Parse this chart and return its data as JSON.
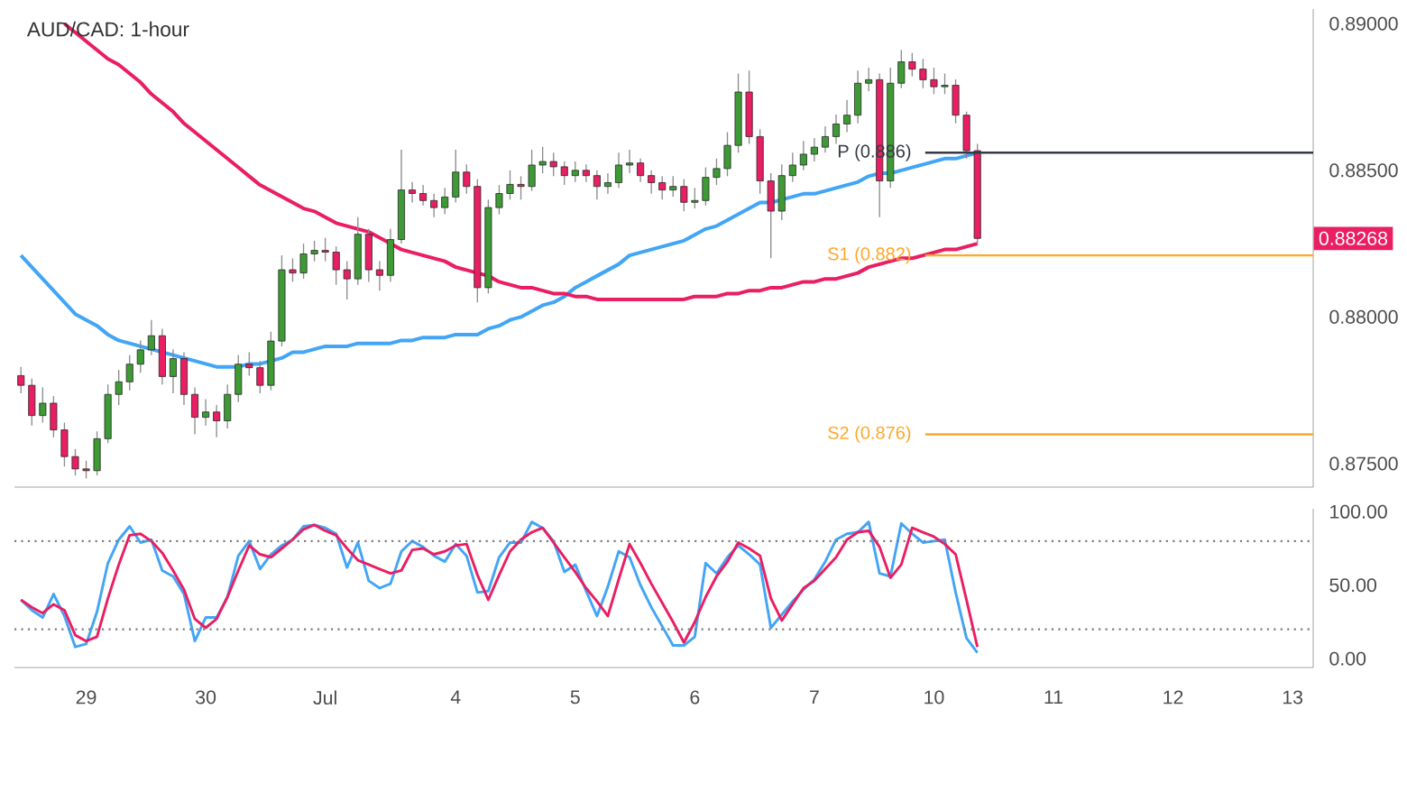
{
  "chart_data": [
    {
      "type": "candlestick",
      "title": "AUD/CAD: 1-hour",
      "ohlc": [
        [
          0.878,
          0.8783,
          0.8774,
          0.87767
        ],
        [
          0.87767,
          0.8779,
          0.8763,
          0.87664
        ],
        [
          0.87664,
          0.8776,
          0.8764,
          0.87706
        ],
        [
          0.87706,
          0.8773,
          0.8759,
          0.87615
        ],
        [
          0.87615,
          0.8764,
          0.8749,
          0.87524
        ],
        [
          0.87524,
          0.8755,
          0.8746,
          0.87482
        ],
        [
          0.87482,
          0.8751,
          0.8745,
          0.87476
        ],
        [
          0.87476,
          0.8761,
          0.8746,
          0.87585
        ],
        [
          0.87585,
          0.8777,
          0.8757,
          0.87736
        ],
        [
          0.87736,
          0.8782,
          0.877,
          0.87779
        ],
        [
          0.87779,
          0.8787,
          0.8775,
          0.87839
        ],
        [
          0.87839,
          0.8792,
          0.8781,
          0.87888
        ],
        [
          0.87888,
          0.8799,
          0.8787,
          0.87936
        ],
        [
          0.87936,
          0.8796,
          0.8777,
          0.87797
        ],
        [
          0.87797,
          0.8789,
          0.8774,
          0.87858
        ],
        [
          0.87858,
          0.8788,
          0.877,
          0.87736
        ],
        [
          0.87736,
          0.8776,
          0.876,
          0.87658
        ],
        [
          0.87658,
          0.8772,
          0.8763,
          0.87676
        ],
        [
          0.87676,
          0.877,
          0.8759,
          0.87646
        ],
        [
          0.87646,
          0.8777,
          0.8762,
          0.87736
        ],
        [
          0.87736,
          0.8787,
          0.8771,
          0.87839
        ],
        [
          0.87839,
          0.8788,
          0.878,
          0.87827
        ],
        [
          0.87827,
          0.8785,
          0.8774,
          0.87767
        ],
        [
          0.87767,
          0.8795,
          0.8775,
          0.87918
        ],
        [
          0.87918,
          0.8821,
          0.879,
          0.88161
        ],
        [
          0.88161,
          0.882,
          0.8812,
          0.8815
        ],
        [
          0.8815,
          0.8825,
          0.8813,
          0.88215
        ],
        [
          0.88215,
          0.8826,
          0.8819,
          0.88227
        ],
        [
          0.88227,
          0.8827,
          0.8819,
          0.88221
        ],
        [
          0.88221,
          0.8824,
          0.8811,
          0.88161
        ],
        [
          0.88161,
          0.8819,
          0.8806,
          0.8813
        ],
        [
          0.8813,
          0.8834,
          0.8811,
          0.88282
        ],
        [
          0.88282,
          0.883,
          0.8812,
          0.88161
        ],
        [
          0.88161,
          0.8819,
          0.8809,
          0.88142
        ],
        [
          0.88142,
          0.883,
          0.8812,
          0.88264
        ],
        [
          0.88264,
          0.8857,
          0.8825,
          0.88433
        ],
        [
          0.88433,
          0.8846,
          0.8839,
          0.88421
        ],
        [
          0.88421,
          0.8845,
          0.8838,
          0.88397
        ],
        [
          0.88397,
          0.8842,
          0.8834,
          0.88373
        ],
        [
          0.88373,
          0.8844,
          0.8835,
          0.88409
        ],
        [
          0.88409,
          0.8857,
          0.8839,
          0.88494
        ],
        [
          0.88494,
          0.8852,
          0.8842,
          0.88445
        ],
        [
          0.88445,
          0.8847,
          0.8805,
          0.881
        ],
        [
          0.881,
          0.884,
          0.8808,
          0.88373
        ],
        [
          0.88373,
          0.8845,
          0.8835,
          0.88421
        ],
        [
          0.88421,
          0.885,
          0.884,
          0.88452
        ],
        [
          0.88452,
          0.8848,
          0.884,
          0.88445
        ],
        [
          0.88445,
          0.8857,
          0.8843,
          0.88518
        ],
        [
          0.88518,
          0.8858,
          0.8849,
          0.8853
        ],
        [
          0.8853,
          0.8856,
          0.8848,
          0.88512
        ],
        [
          0.88512,
          0.8853,
          0.8845,
          0.88482
        ],
        [
          0.88482,
          0.8853,
          0.8846,
          0.885
        ],
        [
          0.885,
          0.8852,
          0.8846,
          0.88482
        ],
        [
          0.88482,
          0.885,
          0.884,
          0.88445
        ],
        [
          0.88445,
          0.8849,
          0.8842,
          0.88458
        ],
        [
          0.88458,
          0.8856,
          0.8844,
          0.88518
        ],
        [
          0.88518,
          0.8857,
          0.8849,
          0.88525
        ],
        [
          0.88525,
          0.8854,
          0.8846,
          0.88482
        ],
        [
          0.88482,
          0.885,
          0.8842,
          0.88458
        ],
        [
          0.88458,
          0.8848,
          0.884,
          0.88433
        ],
        [
          0.88433,
          0.8848,
          0.8841,
          0.88445
        ],
        [
          0.88445,
          0.8847,
          0.8836,
          0.88391
        ],
        [
          0.88391,
          0.8844,
          0.8837,
          0.88397
        ],
        [
          0.88397,
          0.8851,
          0.8838,
          0.88476
        ],
        [
          0.88476,
          0.8854,
          0.8845,
          0.88506
        ],
        [
          0.88506,
          0.8863,
          0.8848,
          0.88585
        ],
        [
          0.88585,
          0.8883,
          0.8856,
          0.88767
        ],
        [
          0.88767,
          0.8884,
          0.8859,
          0.88615
        ],
        [
          0.88615,
          0.8864,
          0.8842,
          0.88464
        ],
        [
          0.88464,
          0.8849,
          0.882,
          0.88361
        ],
        [
          0.88361,
          0.8852,
          0.8833,
          0.88482
        ],
        [
          0.88482,
          0.8856,
          0.8846,
          0.88518
        ],
        [
          0.88518,
          0.886,
          0.885,
          0.88555
        ],
        [
          0.88555,
          0.8861,
          0.8853,
          0.88579
        ],
        [
          0.88579,
          0.8865,
          0.8856,
          0.88615
        ],
        [
          0.88615,
          0.8869,
          0.8859,
          0.88658
        ],
        [
          0.88658,
          0.8874,
          0.8863,
          0.88688
        ],
        [
          0.88688,
          0.8884,
          0.8866,
          0.88797
        ],
        [
          0.88797,
          0.8885,
          0.8877,
          0.88809
        ],
        [
          0.88809,
          0.8883,
          0.8834,
          0.88464
        ],
        [
          0.88464,
          0.8885,
          0.8844,
          0.88797
        ],
        [
          0.88797,
          0.8891,
          0.8878,
          0.8887
        ],
        [
          0.8887,
          0.889,
          0.8882,
          0.88845
        ],
        [
          0.88845,
          0.8888,
          0.8878,
          0.88809
        ],
        [
          0.88809,
          0.8885,
          0.8876,
          0.88785
        ],
        [
          0.88785,
          0.8883,
          0.8876,
          0.8879
        ],
        [
          0.8879,
          0.8881,
          0.8866,
          0.88688
        ],
        [
          0.88688,
          0.887,
          0.8854,
          0.88567
        ],
        [
          0.88567,
          0.8859,
          0.8825,
          0.88268
        ],
        null,
        null,
        null,
        null,
        null,
        null,
        null,
        null,
        null,
        null,
        null,
        null,
        null,
        null,
        null,
        null,
        null,
        null,
        null,
        null,
        null,
        null,
        null,
        null,
        null,
        null,
        null,
        null,
        null,
        null
      ],
      "colors": [
        "#e91e63",
        "#e91e63",
        "#3d9a35",
        "#e91e63",
        "#e91e63",
        "#e91e63",
        "#e91e63",
        "#3d9a35",
        "#3d9a35",
        "#3d9a35",
        "#3d9a35",
        "#3d9a35",
        "#3d9a35",
        "#e91e63",
        "#3d9a35",
        "#e91e63",
        "#e91e63",
        "#3d9a35",
        "#e91e63",
        "#3d9a35",
        "#3d9a35",
        "#e91e63",
        "#e91e63",
        "#3d9a35",
        "#3d9a35",
        "#e91e63",
        "#3d9a35",
        "#3d9a35",
        "#e91e63",
        "#e91e63",
        "#e91e63",
        "#3d9a35",
        "#e91e63",
        "#e91e63",
        "#3d9a35",
        "#3d9a35",
        "#e91e63",
        "#e91e63",
        "#e91e63",
        "#3d9a35",
        "#3d9a35",
        "#e91e63",
        "#e91e63",
        "#3d9a35",
        "#3d9a35",
        "#3d9a35",
        "#e91e63",
        "#3d9a35",
        "#3d9a35",
        "#e91e63",
        "#e91e63",
        "#3d9a35",
        "#e91e63",
        "#e91e63",
        "#3d9a35",
        "#3d9a35",
        "#3d9a35",
        "#e91e63",
        "#e91e63",
        "#e91e63",
        "#3d9a35",
        "#e91e63",
        "#3d9a35",
        "#3d9a35",
        "#3d9a35",
        "#3d9a35",
        "#3d9a35",
        "#e91e63",
        "#e91e63",
        "#e91e63",
        "#3d9a35",
        "#3d9a35",
        "#3d9a35",
        "#3d9a35",
        "#3d9a35",
        "#3d9a35",
        "#3d9a35",
        "#3d9a35",
        "#3d9a35",
        "#e91e63",
        "#3d9a35",
        "#3d9a35",
        "#e91e63",
        "#e91e63",
        "#e91e63",
        "#3d9a35",
        "#e91e63",
        "#e91e63",
        "#e91e63",
        null,
        null,
        null,
        null,
        null,
        null,
        null,
        null,
        null,
        null,
        null,
        null,
        null,
        null,
        null,
        null,
        null,
        null,
        null,
        null,
        null,
        null,
        null,
        null,
        null,
        null,
        null,
        null,
        null,
        null
      ],
      "series": [
        {
          "type": "line",
          "color": "#42a5f5",
          "values": [
            0.8821,
            0.8817,
            0.8813,
            0.8809,
            0.8805,
            0.8801,
            0.8799,
            0.8797,
            0.8794,
            0.8792,
            0.8791,
            0.879,
            0.8789,
            0.8788,
            0.8787,
            0.8786,
            0.8785,
            0.8784,
            0.8783,
            0.8783,
            0.8783,
            0.8784,
            0.8784,
            0.8785,
            0.8786,
            0.8788,
            0.8788,
            0.8789,
            0.879,
            0.879,
            0.879,
            0.8791,
            0.8791,
            0.8791,
            0.8791,
            0.8792,
            0.8792,
            0.8793,
            0.8793,
            0.8793,
            0.8794,
            0.8794,
            0.8794,
            0.8796,
            0.8797,
            0.8799,
            0.88,
            0.8802,
            0.8804,
            0.8805,
            0.8807,
            0.881,
            0.8812,
            0.8814,
            0.8816,
            0.8818,
            0.8821,
            0.8822,
            0.8823,
            0.8824,
            0.8825,
            0.8826,
            0.8828,
            0.883,
            0.8831,
            0.8833,
            0.8835,
            0.8837,
            0.8839,
            0.8839,
            0.884,
            0.8841,
            0.8842,
            0.8842,
            0.8843,
            0.8844,
            0.8845,
            0.8846,
            0.8848,
            0.8849,
            0.8849,
            0.885,
            0.8851,
            0.8852,
            0.8853,
            0.8854,
            0.8854,
            0.8855,
            0.8856,
            null,
            null,
            null,
            null,
            null,
            null,
            null,
            null,
            null,
            null,
            null,
            null,
            null,
            null,
            null,
            null,
            null,
            null,
            null,
            null,
            null,
            null,
            null,
            null,
            null,
            null,
            null,
            null,
            null,
            null
          ]
        },
        {
          "type": "line",
          "color": "#e91e63",
          "values": [
            null,
            null,
            null,
            null,
            0.89,
            0.8897,
            0.8894,
            0.8891,
            0.8888,
            0.8886,
            0.8883,
            0.888,
            0.8876,
            0.8873,
            0.887,
            0.8866,
            0.8863,
            0.886,
            0.8857,
            0.8854,
            0.8851,
            0.8848,
            0.8845,
            0.8843,
            0.8841,
            0.8839,
            0.8837,
            0.8836,
            0.8834,
            0.8832,
            0.8831,
            0.883,
            0.8829,
            0.8827,
            0.8825,
            0.8823,
            0.8822,
            0.8821,
            0.882,
            0.8819,
            0.8817,
            0.8816,
            0.8815,
            0.8814,
            0.8812,
            0.8811,
            0.881,
            0.881,
            0.8809,
            0.8808,
            0.8808,
            0.8807,
            0.8807,
            0.8806,
            0.8806,
            0.8806,
            0.8806,
            0.8806,
            0.8806,
            0.8806,
            0.8806,
            0.8806,
            0.8807,
            0.8807,
            0.8807,
            0.8808,
            0.8808,
            0.8809,
            0.8809,
            0.881,
            0.881,
            0.8811,
            0.8812,
            0.8812,
            0.8813,
            0.8813,
            0.8814,
            0.8815,
            0.8817,
            0.8818,
            0.8819,
            0.882,
            0.882,
            0.8821,
            0.8822,
            0.8823,
            0.8823,
            0.8824,
            0.8825,
            null,
            null,
            null,
            null,
            null,
            null,
            null,
            null,
            null,
            null,
            null,
            null,
            null,
            null,
            null,
            null,
            null,
            null,
            null,
            null,
            null,
            null,
            null,
            null,
            null,
            null,
            null,
            null,
            null,
            null
          ]
        }
      ],
      "ref_lines": [
        {
          "axis": "y",
          "value": 0.8856,
          "label": "P (0.886)",
          "color": "#363a45"
        },
        {
          "axis": "y",
          "value": 0.8821,
          "label": "S1 (0.882)",
          "color": "#ffa726"
        },
        {
          "axis": "y",
          "value": 0.876,
          "label": "S2 (0.876)",
          "color": "#ffa726"
        }
      ],
      "annotations": [
        "0.88268"
      ],
      "ylim": [
        0.8742,
        0.8905
      ],
      "yticks": [
        {
          "value": 0.875,
          "label": "0.87500"
        },
        {
          "value": 0.88,
          "label": "0.88000"
        },
        {
          "value": 0.885,
          "label": "0.88500"
        },
        {
          "value": 0.89,
          "label": "0.89000"
        }
      ],
      "tick_labels": "y"
    },
    {
      "type": "line",
      "categories": [
        null,
        null,
        null,
        null,
        null,
        null,
        "29",
        null,
        null,
        null,
        null,
        null,
        null,
        null,
        null,
        null,
        null,
        "30",
        null,
        null,
        null,
        null,
        null,
        null,
        null,
        null,
        null,
        null,
        "Jul",
        null,
        null,
        null,
        null,
        null,
        null,
        null,
        null,
        null,
        null,
        null,
        "4",
        null,
        null,
        null,
        null,
        null,
        null,
        null,
        null,
        null,
        null,
        "5",
        null,
        null,
        null,
        null,
        null,
        null,
        null,
        null,
        null,
        null,
        "6",
        null,
        null,
        null,
        null,
        null,
        null,
        null,
        null,
        null,
        null,
        "7",
        null,
        null,
        null,
        null,
        null,
        null,
        null,
        null,
        null,
        null,
        "10",
        null,
        null,
        null,
        null,
        null,
        null,
        null,
        null,
        null,
        null,
        "11",
        null,
        null,
        null,
        null,
        null,
        null,
        null,
        null,
        null,
        null,
        "12",
        null,
        null,
        null,
        null,
        null,
        null,
        null,
        null,
        null,
        null,
        "13",
        null
      ],
      "series": [
        {
          "color": "#42a5f5",
          "values": [
            40,
            33,
            28,
            44,
            29,
            8,
            10,
            32,
            65,
            81,
            90,
            79,
            81,
            60,
            56,
            44,
            12,
            28,
            28,
            42,
            70,
            80,
            61,
            71,
            77,
            81,
            90,
            91,
            89,
            85,
            62,
            79,
            53,
            48,
            51,
            73,
            80,
            76,
            70,
            66,
            78,
            70,
            45,
            46,
            69,
            79,
            79,
            93,
            89,
            80,
            59,
            64,
            46,
            29,
            49,
            73,
            69,
            50,
            35,
            22,
            9,
            9,
            15,
            65,
            58,
            69,
            77,
            71,
            64,
            21,
            30,
            39,
            47,
            54,
            66,
            81,
            85,
            86,
            93,
            58,
            56,
            92,
            85,
            79,
            80,
            81,
            45,
            14,
            4,
            null,
            null,
            null,
            null,
            null,
            null,
            null,
            null,
            null,
            null,
            null,
            null,
            null,
            null,
            null,
            null,
            null,
            null,
            null,
            null,
            null,
            null,
            null,
            null,
            null,
            null,
            null,
            null,
            null,
            null
          ]
        },
        {
          "color": "#e91e63",
          "values": [
            40,
            35,
            31,
            37,
            33,
            16,
            12,
            15,
            41,
            64,
            84,
            85,
            80,
            72,
            60,
            47,
            27,
            21,
            27,
            42,
            60,
            77,
            71,
            69,
            75,
            81,
            88,
            91,
            87,
            84,
            75,
            67,
            64,
            61,
            58,
            60,
            74,
            75,
            71,
            73,
            77,
            78,
            57,
            40,
            57,
            73,
            81,
            86,
            89,
            79,
            69,
            59,
            48,
            39,
            29,
            54,
            78,
            65,
            51,
            38,
            25,
            11,
            25,
            42,
            56,
            66,
            79,
            75,
            70,
            41,
            26,
            37,
            48,
            53,
            61,
            69,
            81,
            86,
            87,
            76,
            55,
            64,
            89,
            86,
            83,
            78,
            71,
            40,
            8,
            null,
            null,
            null,
            null,
            null,
            null,
            null,
            null,
            null,
            null,
            null,
            null,
            null,
            null,
            null,
            null,
            null,
            null,
            null,
            null,
            null,
            null,
            null,
            null,
            null,
            null,
            null,
            null,
            null,
            null
          ]
        }
      ],
      "ref_lines": [
        {
          "axis": "y",
          "value": 20,
          "color": "#787b86",
          "line_style": "dotted"
        },
        {
          "axis": "y",
          "value": 80,
          "color": "#787b86",
          "line_style": "dotted"
        }
      ],
      "ylim": [
        -6,
        102
      ],
      "yticks": [
        {
          "value": 0,
          "label": "0.00"
        },
        {
          "value": 50,
          "label": "50.00"
        },
        {
          "value": 100,
          "label": "100.00"
        }
      ]
    }
  ]
}
